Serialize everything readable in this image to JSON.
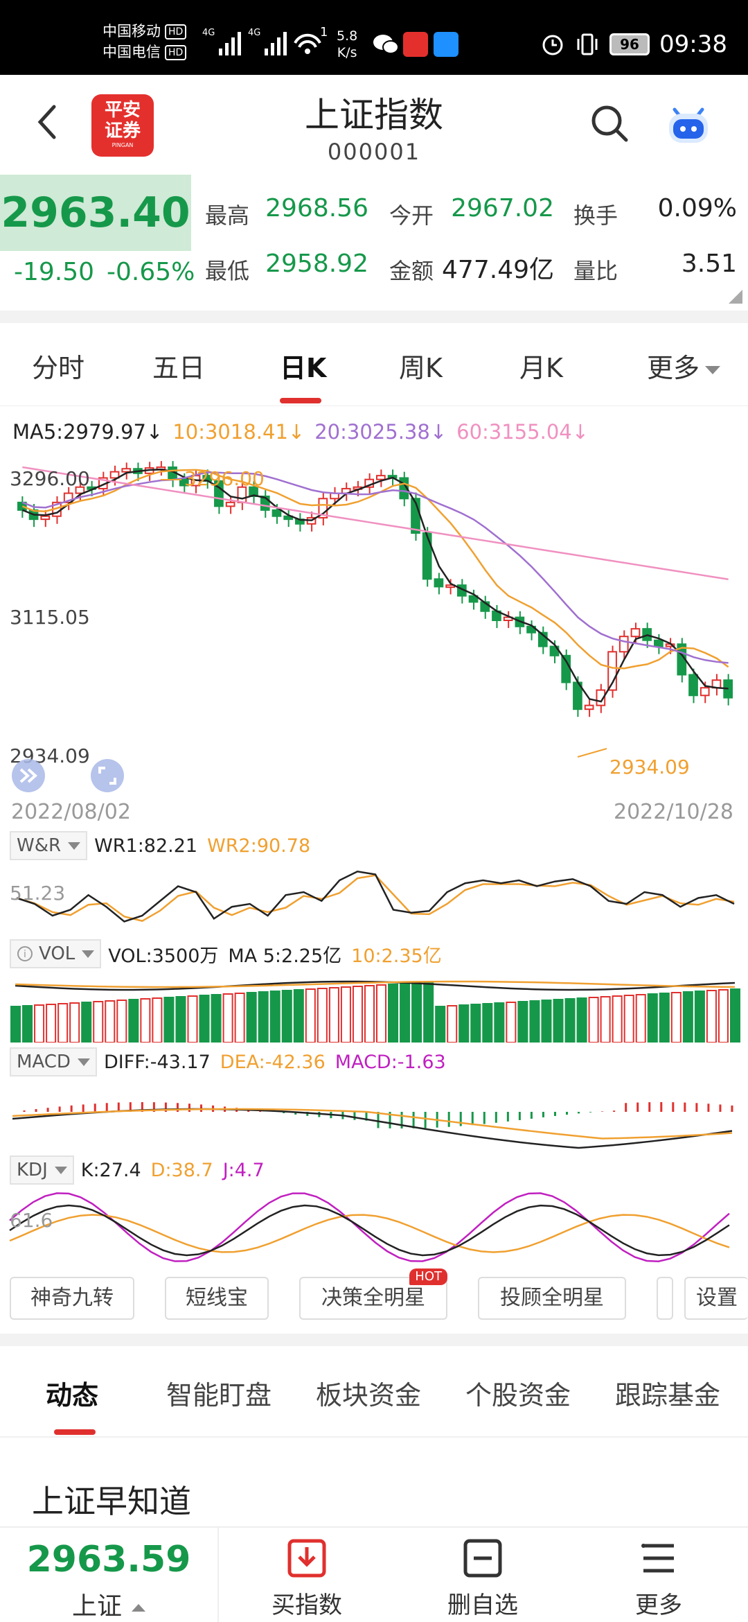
{
  "status_bar": {
    "carrier1": "中国移动",
    "carrier2": "中国电信",
    "hd": "HD",
    "net": "4G",
    "wifi_sup": "1",
    "speed_value": "5.8",
    "speed_unit": "K/s",
    "battery": "96",
    "time": "09:38"
  },
  "header": {
    "logo_line1": "平安",
    "logo_line2": "证券",
    "logo_sub": "PINGAN",
    "title": "上证指数",
    "code": "000001"
  },
  "quote": {
    "price": "2963.40",
    "change": "-19.50",
    "change_pct": "-0.65%",
    "stats": [
      {
        "label": "最高",
        "value": "2968.56"
      },
      {
        "label": "今开",
        "value": "2967.02"
      },
      {
        "label": "换手",
        "value": "0.09%"
      },
      {
        "label": "最低",
        "value": "2958.92"
      },
      {
        "label": "金额",
        "value": "477.49亿"
      },
      {
        "label": "量比",
        "value": "3.51"
      }
    ]
  },
  "period_tabs": [
    "分时",
    "五日",
    "日K",
    "周K",
    "月K",
    "更多"
  ],
  "active_period": "日K",
  "colors": {
    "up": "#e0302e",
    "down": "#16984a",
    "ma5": "#222222",
    "ma10": "#f0a030",
    "ma20": "#a070d0",
    "ma60": "#f090c0",
    "macd": "#c020c0"
  },
  "kline": {
    "ma5": "MA5:2979.97↓",
    "ma10": "10:3018.41↓",
    "ma20": "20:3025.38↓",
    "ma60": "60:3155.04↓",
    "y_top": "3296.00",
    "y_mid": "3115.05",
    "y_bottom": "2934.09",
    "high_marker": "3296.00",
    "low_marker": "2934.09",
    "date_start": "2022/08/02",
    "date_end": "2022/10/28"
  },
  "wr": {
    "name": "W&R",
    "wr1": "WR1:82.21",
    "wr2": "WR2:90.78",
    "axis": "51.23"
  },
  "vol": {
    "name": "VOL",
    "vol": "VOL:3500万",
    "ma5": "MA 5:2.25亿",
    "ma10": "10:2.35亿"
  },
  "macd": {
    "name": "MACD",
    "diff": "DIFF:-43.17",
    "dea": "DEA:-42.36",
    "macd": "MACD:-1.63"
  },
  "kdj": {
    "name": "KDJ",
    "k": "K:27.4",
    "d": "D:38.7",
    "j": "J:4.7",
    "axis": "61.6"
  },
  "tools": {
    "items": [
      "神奇九转",
      "短线宝",
      "决策全明星",
      "投顾全明星"
    ],
    "hot": "HOT",
    "settings": "设置"
  },
  "bottom_tabs": [
    "动态",
    "智能盯盘",
    "板块资金",
    "个股资金",
    "跟踪基金"
  ],
  "section_title": "上证早知道",
  "bottom_nav": {
    "price": "2963.59",
    "name": "上证",
    "buy": "买指数",
    "remove": "删自选",
    "more": "更多"
  }
}
